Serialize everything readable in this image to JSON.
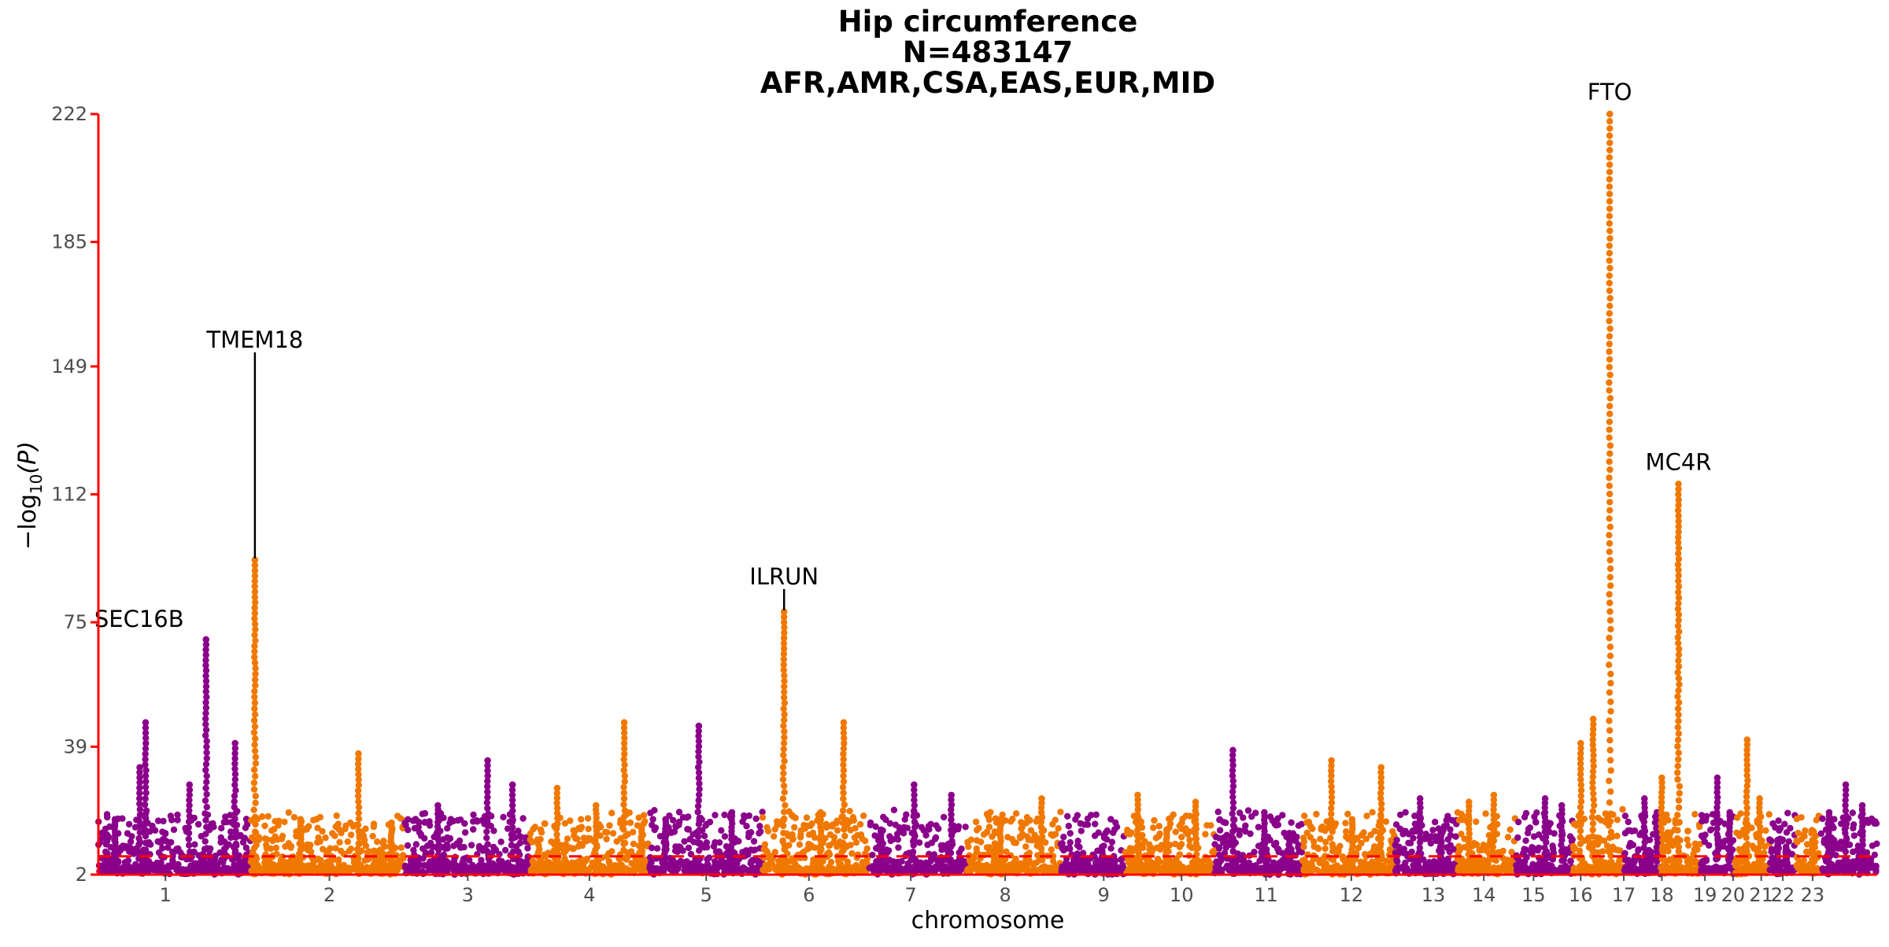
{
  "chart_data": {
    "type": "scatter",
    "subtype": "manhattan",
    "title_lines": [
      "Hip circumference",
      "N=483147",
      "AFR,AMR,CSA,EAS,EUR,MID"
    ],
    "xlabel": "chromosome",
    "ylabel": "−log",
    "ylabel_sub": "10",
    "ylabel_var": "(P)",
    "yticks": [
      2,
      39,
      75,
      112,
      149,
      185,
      222
    ],
    "ylim": [
      2,
      222
    ],
    "significance_line": 7.3,
    "colors": {
      "odd": "#8b008b",
      "even": "#f07800",
      "axis": "#ff0000",
      "threshold": "#ff0000",
      "text": "#000000",
      "tick_text": "#4d4d4d"
    },
    "grid": false,
    "legend": "none",
    "chromosomes": [
      {
        "label": "1",
        "tick_pos": 81,
        "start": 0,
        "end": 184,
        "peaks": [
          [
            57,
            46
          ],
          [
            50,
            33
          ],
          [
            130,
            70
          ],
          [
            165,
            40
          ],
          [
            110,
            28
          ],
          [
            20,
            18
          ]
        ]
      },
      {
        "label": "2",
        "tick_pos": 279,
        "start": 184,
        "end": 370,
        "peaks": [
          [
            5,
            93
          ],
          [
            130,
            37
          ],
          [
            60,
            18
          ],
          [
            170,
            17
          ]
        ]
      },
      {
        "label": "3",
        "tick_pos": 446,
        "start": 370,
        "end": 521,
        "peaks": [
          [
            100,
            35
          ],
          [
            130,
            28
          ],
          [
            40,
            22
          ]
        ]
      },
      {
        "label": "4",
        "tick_pos": 593,
        "start": 521,
        "end": 665,
        "peaks": [
          [
            114,
            46
          ],
          [
            33,
            27
          ],
          [
            80,
            22
          ],
          [
            135,
            16
          ]
        ]
      },
      {
        "label": "5",
        "tick_pos": 734,
        "start": 665,
        "end": 802,
        "peaks": [
          [
            60,
            45
          ],
          [
            20,
            18
          ],
          [
            100,
            20
          ]
        ]
      },
      {
        "label": "6",
        "tick_pos": 858,
        "start": 802,
        "end": 930,
        "peaks": [
          [
            26,
            78
          ],
          [
            98,
            46
          ],
          [
            70,
            20
          ]
        ]
      },
      {
        "label": "7",
        "tick_pos": 981,
        "start": 930,
        "end": 1049,
        "peaks": [
          [
            55,
            28
          ],
          [
            100,
            25
          ],
          [
            15,
            15
          ]
        ]
      },
      {
        "label": "8",
        "tick_pos": 1095,
        "start": 1049,
        "end": 1162,
        "peaks": [
          [
            90,
            24
          ],
          [
            40,
            17
          ]
        ]
      },
      {
        "label": "9",
        "tick_pos": 1214,
        "start": 1162,
        "end": 1240,
        "peaks": [
          [
            20,
            8
          ],
          [
            50,
            10
          ]
        ]
      },
      {
        "label": "10",
        "tick_pos": 1308,
        "start": 1240,
        "end": 1348,
        "peaks": [
          [
            15,
            25
          ],
          [
            85,
            23
          ],
          [
            50,
            15
          ]
        ]
      },
      {
        "label": "11",
        "tick_pos": 1410,
        "start": 1348,
        "end": 1454,
        "peaks": [
          [
            22,
            38
          ],
          [
            60,
            20
          ],
          [
            90,
            14
          ]
        ]
      },
      {
        "label": "12",
        "tick_pos": 1513,
        "start": 1454,
        "end": 1566,
        "peaks": [
          [
            95,
            33
          ],
          [
            35,
            35
          ],
          [
            60,
            18
          ]
        ]
      },
      {
        "label": "13",
        "tick_pos": 1612,
        "start": 1566,
        "end": 1640,
        "peaks": [
          [
            30,
            24
          ],
          [
            55,
            14
          ]
        ]
      },
      {
        "label": "14",
        "tick_pos": 1673,
        "start": 1640,
        "end": 1712,
        "peaks": [
          [
            15,
            23
          ],
          [
            45,
            25
          ]
        ]
      },
      {
        "label": "15",
        "tick_pos": 1733,
        "start": 1712,
        "end": 1780,
        "peaks": [
          [
            35,
            24
          ],
          [
            55,
            22
          ]
        ]
      },
      {
        "label": "16",
        "tick_pos": 1790,
        "start": 1780,
        "end": 1842,
        "peaks": [
          [
            45,
            222
          ],
          [
            10,
            40
          ],
          [
            25,
            47
          ]
        ]
      },
      {
        "label": "17",
        "tick_pos": 1842,
        "start": 1842,
        "end": 1888,
        "peaks": [
          [
            25,
            24
          ],
          [
            40,
            20
          ]
        ]
      },
      {
        "label": "18",
        "tick_pos": 1888,
        "start": 1888,
        "end": 1935,
        "peaks": [
          [
            20,
            115
          ],
          [
            0,
            30
          ]
        ]
      },
      {
        "label": "19",
        "tick_pos": 1940,
        "start": 1935,
        "end": 1976,
        "peaks": [
          [
            20,
            30
          ],
          [
            35,
            20
          ]
        ]
      },
      {
        "label": "20",
        "tick_pos": 1974,
        "start": 1976,
        "end": 2018,
        "peaks": [
          [
            15,
            41
          ],
          [
            30,
            24
          ]
        ]
      },
      {
        "label": "21",
        "tick_pos": 2008,
        "start": 2018,
        "end": 2050,
        "peaks": [
          [
            10,
            12
          ],
          [
            20,
            10
          ]
        ]
      },
      {
        "label": "22",
        "tick_pos": 2034,
        "start": 2050,
        "end": 2080,
        "peaks": [
          [
            20,
            12
          ]
        ]
      },
      {
        "label": "23",
        "tick_pos": 2070,
        "start": 2080,
        "end": 2148,
        "peaks": [
          [
            30,
            28
          ],
          [
            50,
            22
          ],
          [
            10,
            20
          ]
        ]
      }
    ],
    "annotations": [
      {
        "gene": "SEC16B",
        "chrom": "1",
        "x": 130,
        "y": 70
      },
      {
        "gene": "TMEM18",
        "chrom": "2",
        "x": 189,
        "y": 93
      },
      {
        "gene": "ILRUN",
        "chrom": "6",
        "x": 828,
        "y": 78
      },
      {
        "gene": "FTO",
        "chrom": "16",
        "x": 1825,
        "y": 222
      },
      {
        "gene": "MC4R",
        "chrom": "18",
        "x": 1908,
        "y": 115
      }
    ]
  }
}
